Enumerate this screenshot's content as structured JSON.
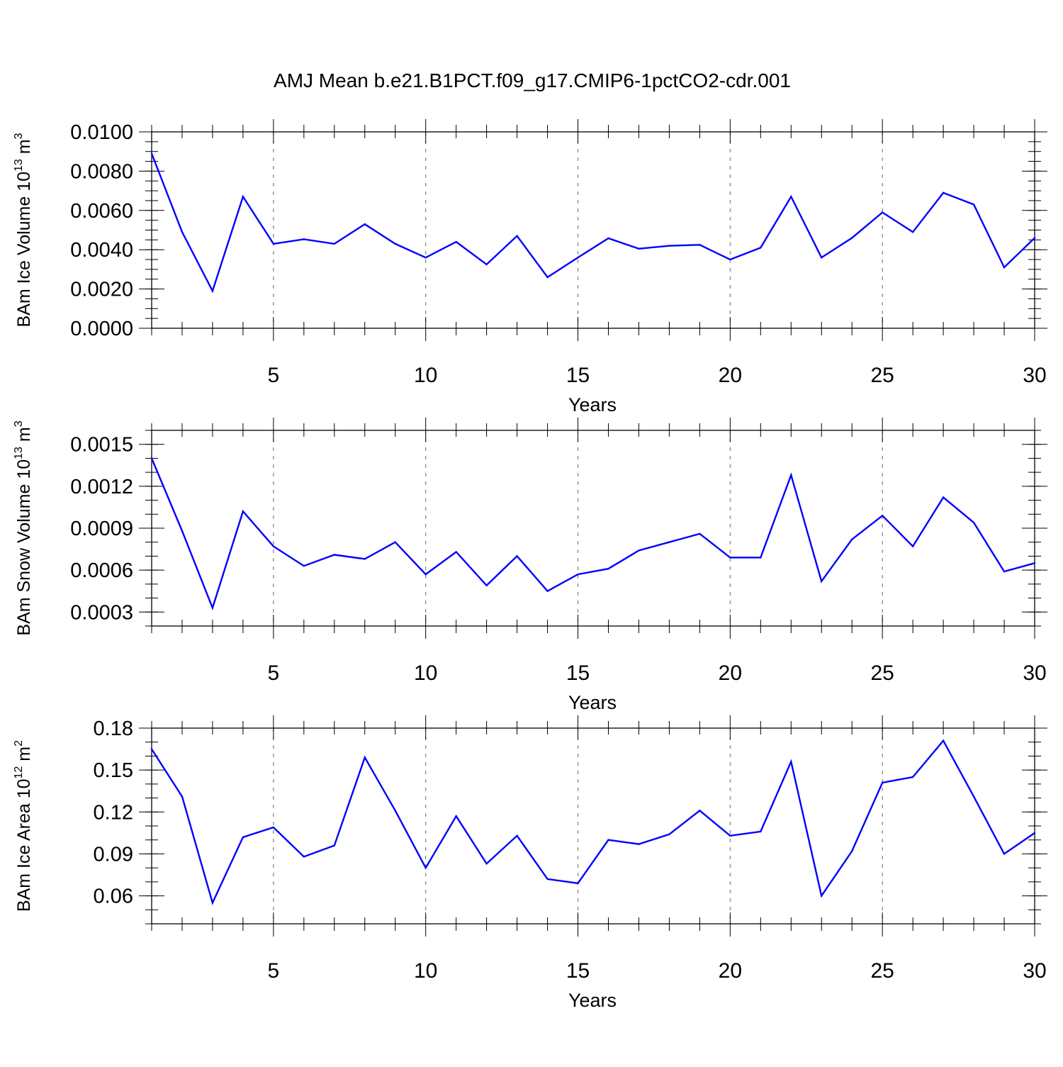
{
  "title": "AMJ Mean b.e21.B1PCT.f09_g17.CMIP6-1pctCO2-cdr.001",
  "colors": {
    "line": "#0000ff",
    "axis": "#000000",
    "grid": "#7f7f7f"
  },
  "chart_data": [
    {
      "type": "line",
      "name": "ice-volume",
      "ylabel_main": "BAm Ice Volume 10",
      "ylabel_exp": "13",
      "ylabel_unit": " m",
      "ylabel_unit_exp": "3",
      "xlabel": "Years",
      "xlim": [
        1,
        30
      ],
      "ylim": [
        0.0,
        0.01
      ],
      "yticks": [
        0.0,
        0.002,
        0.004,
        0.006,
        0.008,
        0.01
      ],
      "ytick_labels": [
        "0.0000",
        "0.0020",
        "0.0040",
        "0.0060",
        "0.0080",
        "0.0100"
      ],
      "yminor_step": 0.0005,
      "xticks": [
        5,
        10,
        15,
        20,
        25,
        30
      ],
      "xtick_labels": [
        "5",
        "10",
        "15",
        "20",
        "25",
        "30"
      ],
      "grid_x": [
        5,
        10,
        15,
        20,
        25
      ],
      "x": [
        1,
        2,
        3,
        4,
        5,
        6,
        7,
        8,
        9,
        10,
        11,
        12,
        13,
        14,
        15,
        16,
        17,
        18,
        19,
        20,
        21,
        22,
        23,
        24,
        25,
        26,
        27,
        28,
        29,
        30
      ],
      "values": [
        0.0089,
        0.0049,
        0.0019,
        0.0067,
        0.0043,
        0.00453,
        0.0043,
        0.0053,
        0.0043,
        0.0036,
        0.0044,
        0.00325,
        0.0047,
        0.0026,
        0.0036,
        0.00458,
        0.00405,
        0.0042,
        0.00425,
        0.0035,
        0.0041,
        0.0067,
        0.0036,
        0.0046,
        0.0059,
        0.0049,
        0.0069,
        0.0063,
        0.0031,
        0.0046
      ]
    },
    {
      "type": "line",
      "name": "snow-volume",
      "ylabel_main": "BAm Snow Volume 10",
      "ylabel_exp": "13",
      "ylabel_unit": " m",
      "ylabel_unit_exp": "3",
      "xlabel": "Years",
      "xlim": [
        1,
        30
      ],
      "ylim": [
        0.0002,
        0.0016
      ],
      "yticks": [
        0.0003,
        0.0006,
        0.0009,
        0.0012,
        0.0015
      ],
      "ytick_labels": [
        "0.0003",
        "0.0006",
        "0.0009",
        "0.0012",
        "0.0015"
      ],
      "yminor_step": 0.0001,
      "xticks": [
        5,
        10,
        15,
        20,
        25,
        30
      ],
      "xtick_labels": [
        "5",
        "10",
        "15",
        "20",
        "25",
        "30"
      ],
      "grid_x": [
        5,
        10,
        15,
        20,
        25
      ],
      "x": [
        1,
        2,
        3,
        4,
        5,
        6,
        7,
        8,
        9,
        10,
        11,
        12,
        13,
        14,
        15,
        16,
        17,
        18,
        19,
        20,
        21,
        22,
        23,
        24,
        25,
        26,
        27,
        28,
        29,
        30
      ],
      "values": [
        0.0014,
        0.00088,
        0.00033,
        0.00102,
        0.00077,
        0.00063,
        0.00071,
        0.00068,
        0.0008,
        0.00057,
        0.00073,
        0.00049,
        0.0007,
        0.00045,
        0.00057,
        0.00061,
        0.00074,
        0.0008,
        0.00086,
        0.00069,
        0.00069,
        0.00128,
        0.00052,
        0.00082,
        0.00099,
        0.00077,
        0.00112,
        0.00094,
        0.00059,
        0.00065
      ]
    },
    {
      "type": "line",
      "name": "ice-area",
      "ylabel_main": "BAm Ice Area 10",
      "ylabel_exp": "12",
      "ylabel_unit": " m",
      "ylabel_unit_exp": "2",
      "xlabel": "Years",
      "xlim": [
        1,
        30
      ],
      "ylim": [
        0.04,
        0.18
      ],
      "yticks": [
        0.06,
        0.09,
        0.12,
        0.15,
        0.18
      ],
      "ytick_labels": [
        "0.06",
        "0.09",
        "0.12",
        "0.15",
        "0.18"
      ],
      "yminor_step": 0.01,
      "xticks": [
        5,
        10,
        15,
        20,
        25,
        30
      ],
      "xtick_labels": [
        "5",
        "10",
        "15",
        "20",
        "25",
        "30"
      ],
      "grid_x": [
        5,
        10,
        15,
        20,
        25
      ],
      "x": [
        1,
        2,
        3,
        4,
        5,
        6,
        7,
        8,
        9,
        10,
        11,
        12,
        13,
        14,
        15,
        16,
        17,
        18,
        19,
        20,
        21,
        22,
        23,
        24,
        25,
        26,
        27,
        28,
        29,
        30
      ],
      "values": [
        0.165,
        0.131,
        0.055,
        0.102,
        0.109,
        0.088,
        0.096,
        0.159,
        0.121,
        0.08,
        0.117,
        0.083,
        0.103,
        0.072,
        0.069,
        0.1,
        0.097,
        0.104,
        0.121,
        0.103,
        0.106,
        0.156,
        0.06,
        0.092,
        0.141,
        0.145,
        0.171,
        0.131,
        0.09,
        0.105
      ]
    }
  ]
}
